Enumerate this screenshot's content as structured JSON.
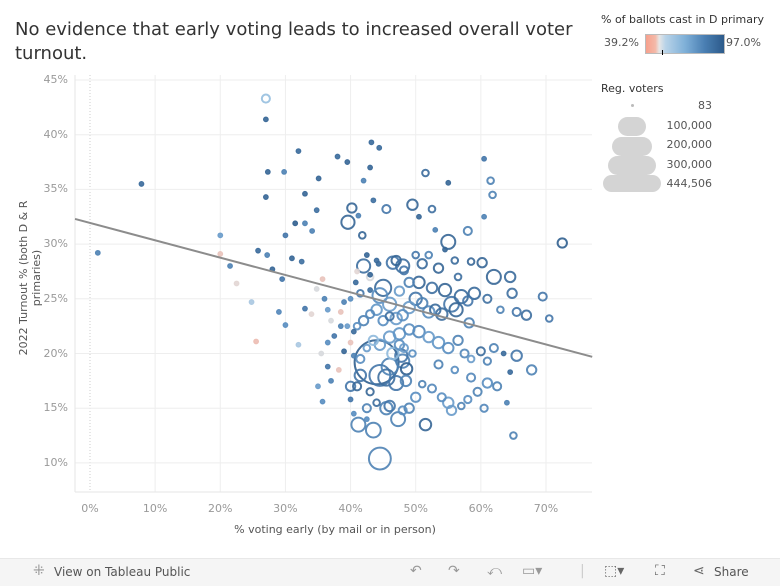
{
  "chart_data": {
    "type": "scatter",
    "title": "No evidence that early voting leads to increased overall voter turnout.",
    "xlabel": "% voting early (by mail or in person)",
    "ylabel": "2022 Turnout % (both D & R primaries)",
    "xlim": [
      -2.3,
      77.1
    ],
    "ylim": [
      8.7,
      45.5
    ],
    "x_ticks": [
      "0%",
      "10%",
      "20%",
      "30%",
      "40%",
      "50%",
      "60%",
      "70%"
    ],
    "x_tick_values": [
      0,
      10,
      20,
      30,
      40,
      50,
      60,
      70
    ],
    "y_ticks": [
      "45%",
      "40%",
      "35%",
      "30%",
      "25%",
      "20%",
      "15%",
      "10%"
    ],
    "y_tick_values": [
      45,
      40,
      35,
      30,
      25,
      20,
      15,
      10
    ],
    "grid": true,
    "trend_line": {
      "x": [
        -2.3,
        77.1
      ],
      "y": [
        32.3,
        19.7
      ]
    },
    "color_legend": {
      "title": "% of ballots cast in D primary",
      "min_label": "39.2%",
      "max_label": "97.0%",
      "min": 39.2,
      "max": 97.0,
      "colors": {
        "low": "#f7a08c",
        "mid": "#e0e0e0",
        "high": "#2c5a8a"
      }
    },
    "size_legend": {
      "title": "Reg. voters",
      "entries": [
        "83",
        "100,000",
        "200,000",
        "300,000",
        "444,506"
      ]
    },
    "point_fields": [
      "x_pct_early",
      "y_turnout_pct",
      "pct_dem",
      "reg_voters"
    ],
    "points": [
      [
        1.2,
        29.2,
        80,
        2000
      ],
      [
        7.9,
        35.5,
        90,
        3000
      ],
      [
        20.0,
        30.8,
        70,
        2000
      ],
      [
        20.0,
        29.1,
        45,
        9000
      ],
      [
        21.5,
        28.0,
        80,
        1500
      ],
      [
        22.5,
        26.4,
        48,
        1200
      ],
      [
        24.8,
        24.7,
        55,
        1800
      ],
      [
        25.5,
        21.1,
        44,
        2500
      ],
      [
        27.0,
        43.3,
        58,
        15000
      ],
      [
        27.0,
        41.4,
        92,
        4000
      ],
      [
        27.3,
        36.6,
        92,
        3000
      ],
      [
        27.0,
        34.3,
        92,
        2500
      ],
      [
        25.8,
        29.4,
        90,
        3000
      ],
      [
        27.2,
        29.0,
        80,
        3000
      ],
      [
        28.0,
        27.7,
        92,
        2500
      ],
      [
        29.5,
        26.8,
        85,
        2000
      ],
      [
        29.0,
        23.8,
        78,
        1500
      ],
      [
        30.0,
        22.6,
        75,
        1200
      ],
      [
        29.8,
        36.6,
        80,
        2000
      ],
      [
        32.0,
        38.5,
        90,
        2500
      ],
      [
        33.0,
        34.6,
        92,
        3000
      ],
      [
        31.0,
        28.7,
        92,
        3000
      ],
      [
        30.0,
        30.8,
        85,
        2500
      ],
      [
        34.1,
        31.2,
        80,
        3000
      ],
      [
        32.5,
        28.4,
        88,
        3000
      ],
      [
        31.5,
        31.9,
        95,
        8000
      ],
      [
        33.0,
        31.9,
        80,
        2500
      ],
      [
        34.8,
        33.1,
        88,
        2000
      ],
      [
        35.1,
        36.0,
        92,
        2000
      ],
      [
        35.7,
        26.8,
        45,
        4000
      ],
      [
        34.8,
        25.9,
        50,
        5000
      ],
      [
        36.0,
        25.0,
        80,
        3000
      ],
      [
        36.5,
        24.0,
        70,
        6000
      ],
      [
        37.0,
        23.0,
        50,
        4000
      ],
      [
        36.5,
        21.0,
        75,
        1500
      ],
      [
        35.5,
        20.0,
        50,
        2000
      ],
      [
        38.0,
        38.0,
        90,
        3000
      ],
      [
        39.5,
        37.5,
        92,
        2000
      ],
      [
        40.2,
        33.3,
        92,
        20000
      ],
      [
        39.6,
        32.0,
        92,
        40000
      ],
      [
        41.2,
        32.6,
        80,
        6000
      ],
      [
        42.0,
        35.8,
        80,
        3000
      ],
      [
        43.2,
        39.3,
        90,
        8000
      ],
      [
        44.4,
        38.8,
        90,
        9000
      ],
      [
        43.0,
        37.0,
        92,
        3000
      ],
      [
        43.5,
        34.0,
        88,
        5000
      ],
      [
        45.5,
        33.2,
        85,
        15000
      ],
      [
        41.8,
        30.8,
        92,
        10000
      ],
      [
        42.5,
        29.0,
        92,
        6000
      ],
      [
        43.0,
        27.2,
        92,
        4000
      ],
      [
        44.0,
        28.5,
        90,
        7000
      ],
      [
        44.3,
        28.2,
        90,
        5000
      ],
      [
        42.0,
        28.0,
        88,
        40000
      ],
      [
        40.8,
        26.5,
        90,
        5000
      ],
      [
        41.5,
        25.5,
        85,
        10000
      ],
      [
        43.0,
        25.8,
        88,
        8000
      ],
      [
        44.5,
        25.3,
        75,
        50000
      ],
      [
        45.0,
        26.0,
        90,
        60000
      ],
      [
        46.0,
        23.4,
        88,
        15000
      ],
      [
        46.5,
        28.3,
        85,
        35000
      ],
      [
        47.0,
        28.5,
        92,
        20000
      ],
      [
        48.0,
        28.0,
        88,
        40000
      ],
      [
        47.5,
        25.7,
        70,
        20000
      ],
      [
        48.2,
        27.6,
        85,
        15000
      ],
      [
        49.0,
        26.5,
        80,
        20000
      ],
      [
        50.0,
        29.0,
        85,
        10000
      ],
      [
        51.0,
        28.2,
        90,
        20000
      ],
      [
        52.0,
        29.0,
        80,
        10000
      ],
      [
        49.5,
        33.6,
        92,
        25000
      ],
      [
        51.5,
        36.5,
        90,
        10000
      ],
      [
        52.5,
        33.2,
        88,
        10000
      ],
      [
        55.0,
        35.6,
        92,
        2000
      ],
      [
        50.5,
        32.5,
        92,
        8000
      ],
      [
        53.0,
        31.3,
        80,
        8000
      ],
      [
        54.5,
        29.5,
        92,
        3000
      ],
      [
        53.5,
        27.8,
        92,
        20000
      ],
      [
        55.0,
        30.2,
        92,
        45000
      ],
      [
        58.0,
        31.2,
        80,
        15000
      ],
      [
        58.5,
        28.4,
        92,
        10000
      ],
      [
        56.5,
        27.0,
        88,
        10000
      ],
      [
        60.2,
        28.3,
        92,
        20000
      ],
      [
        60.5,
        32.5,
        80,
        8000
      ],
      [
        61.8,
        34.5,
        80,
        10000
      ],
      [
        61.5,
        35.8,
        80,
        10000
      ],
      [
        60.5,
        37.8,
        85,
        8000
      ],
      [
        56.0,
        28.5,
        90,
        10000
      ],
      [
        62.0,
        27.0,
        92,
        45000
      ],
      [
        64.5,
        27.0,
        90,
        25000
      ],
      [
        64.8,
        25.5,
        88,
        20000
      ],
      [
        72.5,
        30.1,
        95,
        20000
      ],
      [
        69.5,
        25.2,
        85,
        15000
      ],
      [
        70.5,
        23.2,
        85,
        10000
      ],
      [
        67.0,
        23.5,
        88,
        20000
      ],
      [
        65.5,
        23.8,
        85,
        15000
      ],
      [
        63.0,
        24.0,
        80,
        10000
      ],
      [
        61.0,
        25.0,
        88,
        15000
      ],
      [
        59.0,
        25.5,
        90,
        30000
      ],
      [
        58.0,
        24.8,
        85,
        20000
      ],
      [
        57.0,
        25.2,
        90,
        40000
      ],
      [
        55.5,
        24.5,
        85,
        50000
      ],
      [
        54.0,
        23.6,
        88,
        30000
      ],
      [
        53.0,
        24.0,
        90,
        25000
      ],
      [
        52.0,
        23.8,
        75,
        30000
      ],
      [
        51.0,
        24.6,
        80,
        25000
      ],
      [
        50.0,
        25.0,
        85,
        35000
      ],
      [
        49.0,
        24.2,
        70,
        30000
      ],
      [
        48.0,
        23.5,
        75,
        25000
      ],
      [
        47.0,
        23.2,
        70,
        30000
      ],
      [
        46.0,
        24.5,
        70,
        40000
      ],
      [
        45.0,
        23.0,
        75,
        20000
      ],
      [
        44.0,
        24.0,
        72,
        25000
      ],
      [
        43.0,
        23.6,
        78,
        15000
      ],
      [
        42.0,
        23.0,
        80,
        20000
      ],
      [
        41.0,
        22.5,
        75,
        10000
      ],
      [
        40.5,
        22.0,
        90,
        5000
      ],
      [
        39.5,
        22.5,
        70,
        6000
      ],
      [
        38.5,
        22.5,
        80,
        3000
      ],
      [
        37.5,
        21.6,
        85,
        4000
      ],
      [
        40.0,
        21.0,
        45,
        5000
      ],
      [
        39.0,
        20.2,
        92,
        8000
      ],
      [
        40.5,
        19.8,
        80,
        6000
      ],
      [
        41.5,
        19.5,
        75,
        15000
      ],
      [
        42.5,
        20.5,
        70,
        10000
      ],
      [
        43.5,
        21.2,
        60,
        20000
      ],
      [
        44.5,
        20.8,
        70,
        25000
      ],
      [
        46.0,
        21.5,
        70,
        30000
      ],
      [
        47.5,
        21.8,
        72,
        30000
      ],
      [
        49.0,
        22.2,
        75,
        25000
      ],
      [
        50.5,
        22.0,
        78,
        30000
      ],
      [
        52.0,
        21.5,
        70,
        25000
      ],
      [
        53.5,
        21.0,
        72,
        30000
      ],
      [
        55.0,
        20.5,
        75,
        25000
      ],
      [
        56.5,
        21.2,
        80,
        20000
      ],
      [
        57.5,
        20.0,
        78,
        15000
      ],
      [
        58.5,
        19.5,
        70,
        10000
      ],
      [
        60.0,
        20.2,
        90,
        15000
      ],
      [
        62.0,
        20.5,
        80,
        15000
      ],
      [
        63.5,
        20.0,
        90,
        3000
      ],
      [
        65.5,
        19.8,
        85,
        25000
      ],
      [
        67.8,
        18.5,
        80,
        20000
      ],
      [
        64.5,
        18.3,
        90,
        2000
      ],
      [
        62.5,
        17.0,
        80,
        15000
      ],
      [
        61.0,
        17.3,
        75,
        20000
      ],
      [
        59.5,
        16.5,
        80,
        15000
      ],
      [
        58.0,
        15.8,
        75,
        12000
      ],
      [
        57.0,
        15.2,
        80,
        10000
      ],
      [
        55.5,
        14.8,
        70,
        20000
      ],
      [
        54.0,
        16.0,
        75,
        15000
      ],
      [
        52.5,
        16.8,
        78,
        15000
      ],
      [
        51.0,
        17.2,
        80,
        10000
      ],
      [
        50.0,
        16.0,
        75,
        20000
      ],
      [
        49.0,
        15.0,
        80,
        20000
      ],
      [
        48.0,
        14.8,
        75,
        15000
      ],
      [
        46.0,
        15.2,
        85,
        25000
      ],
      [
        44.0,
        15.5,
        90,
        10000
      ],
      [
        42.5,
        15.0,
        80,
        15000
      ],
      [
        43.0,
        16.5,
        92,
        12000
      ],
      [
        41.0,
        17.0,
        92,
        15000
      ],
      [
        40.0,
        15.8,
        85,
        3000
      ],
      [
        40.5,
        14.5,
        75,
        2000
      ],
      [
        42.5,
        14.0,
        75,
        6000
      ],
      [
        41.2,
        13.5,
        80,
        45000
      ],
      [
        47.3,
        14.0,
        80,
        45000
      ],
      [
        45.5,
        15.0,
        80,
        35000
      ],
      [
        51.5,
        13.5,
        92,
        30000
      ],
      [
        43.5,
        13.0,
        80,
        50000
      ],
      [
        44.5,
        10.4,
        80,
        110000
      ],
      [
        55.0,
        15.5,
        70,
        25000
      ],
      [
        45.5,
        17.8,
        88,
        60000
      ],
      [
        47.0,
        17.3,
        85,
        45000
      ],
      [
        44.0,
        19.2,
        95,
        444506
      ],
      [
        44.5,
        18.0,
        85,
        100000
      ],
      [
        46.0,
        18.8,
        80,
        60000
      ],
      [
        48.0,
        19.3,
        80,
        40000
      ],
      [
        41.5,
        18.0,
        85,
        30000
      ],
      [
        48.5,
        17.5,
        80,
        25000
      ],
      [
        46.5,
        20.0,
        60,
        30000
      ],
      [
        47.5,
        20.8,
        75,
        20000
      ],
      [
        48.2,
        20.5,
        70,
        15000
      ],
      [
        49.5,
        20.0,
        75,
        10000
      ],
      [
        40.0,
        17.0,
        85,
        20000
      ],
      [
        53.5,
        19.0,
        80,
        15000
      ],
      [
        56.0,
        18.5,
        75,
        10000
      ],
      [
        58.5,
        17.8,
        78,
        15000
      ],
      [
        61.0,
        19.3,
        80,
        12000
      ],
      [
        65.0,
        12.5,
        80,
        10000
      ],
      [
        64.0,
        15.5,
        80,
        8000
      ],
      [
        60.5,
        15.0,
        78,
        12000
      ],
      [
        50.5,
        26.5,
        92,
        30000
      ],
      [
        52.5,
        26.0,
        88,
        25000
      ],
      [
        54.5,
        25.8,
        92,
        35000
      ],
      [
        56.2,
        24.0,
        92,
        40000
      ],
      [
        58.2,
        22.8,
        80,
        20000
      ],
      [
        48.6,
        18.6,
        95,
        30000
      ],
      [
        47.8,
        19.8,
        85,
        35000
      ],
      [
        36.5,
        18.8,
        85,
        8000
      ],
      [
        37.0,
        17.5,
        80,
        5000
      ],
      [
        35.0,
        17.0,
        70,
        3000
      ],
      [
        35.7,
        15.6,
        75,
        2000
      ],
      [
        38.2,
        18.5,
        45,
        5000
      ],
      [
        39.0,
        24.7,
        80,
        6000
      ],
      [
        40.0,
        25.0,
        75,
        8000
      ],
      [
        38.5,
        23.8,
        45,
        5000
      ],
      [
        34.0,
        23.6,
        48,
        5000
      ],
      [
        33.0,
        24.1,
        85,
        3000
      ],
      [
        32.0,
        20.8,
        55,
        2000
      ],
      [
        41.0,
        27.5,
        48,
        5000
      ],
      [
        43.0,
        27.0,
        50,
        10000
      ]
    ]
  },
  "footer": {
    "view_on_tableau": "View on Tableau Public",
    "share": "Share"
  }
}
